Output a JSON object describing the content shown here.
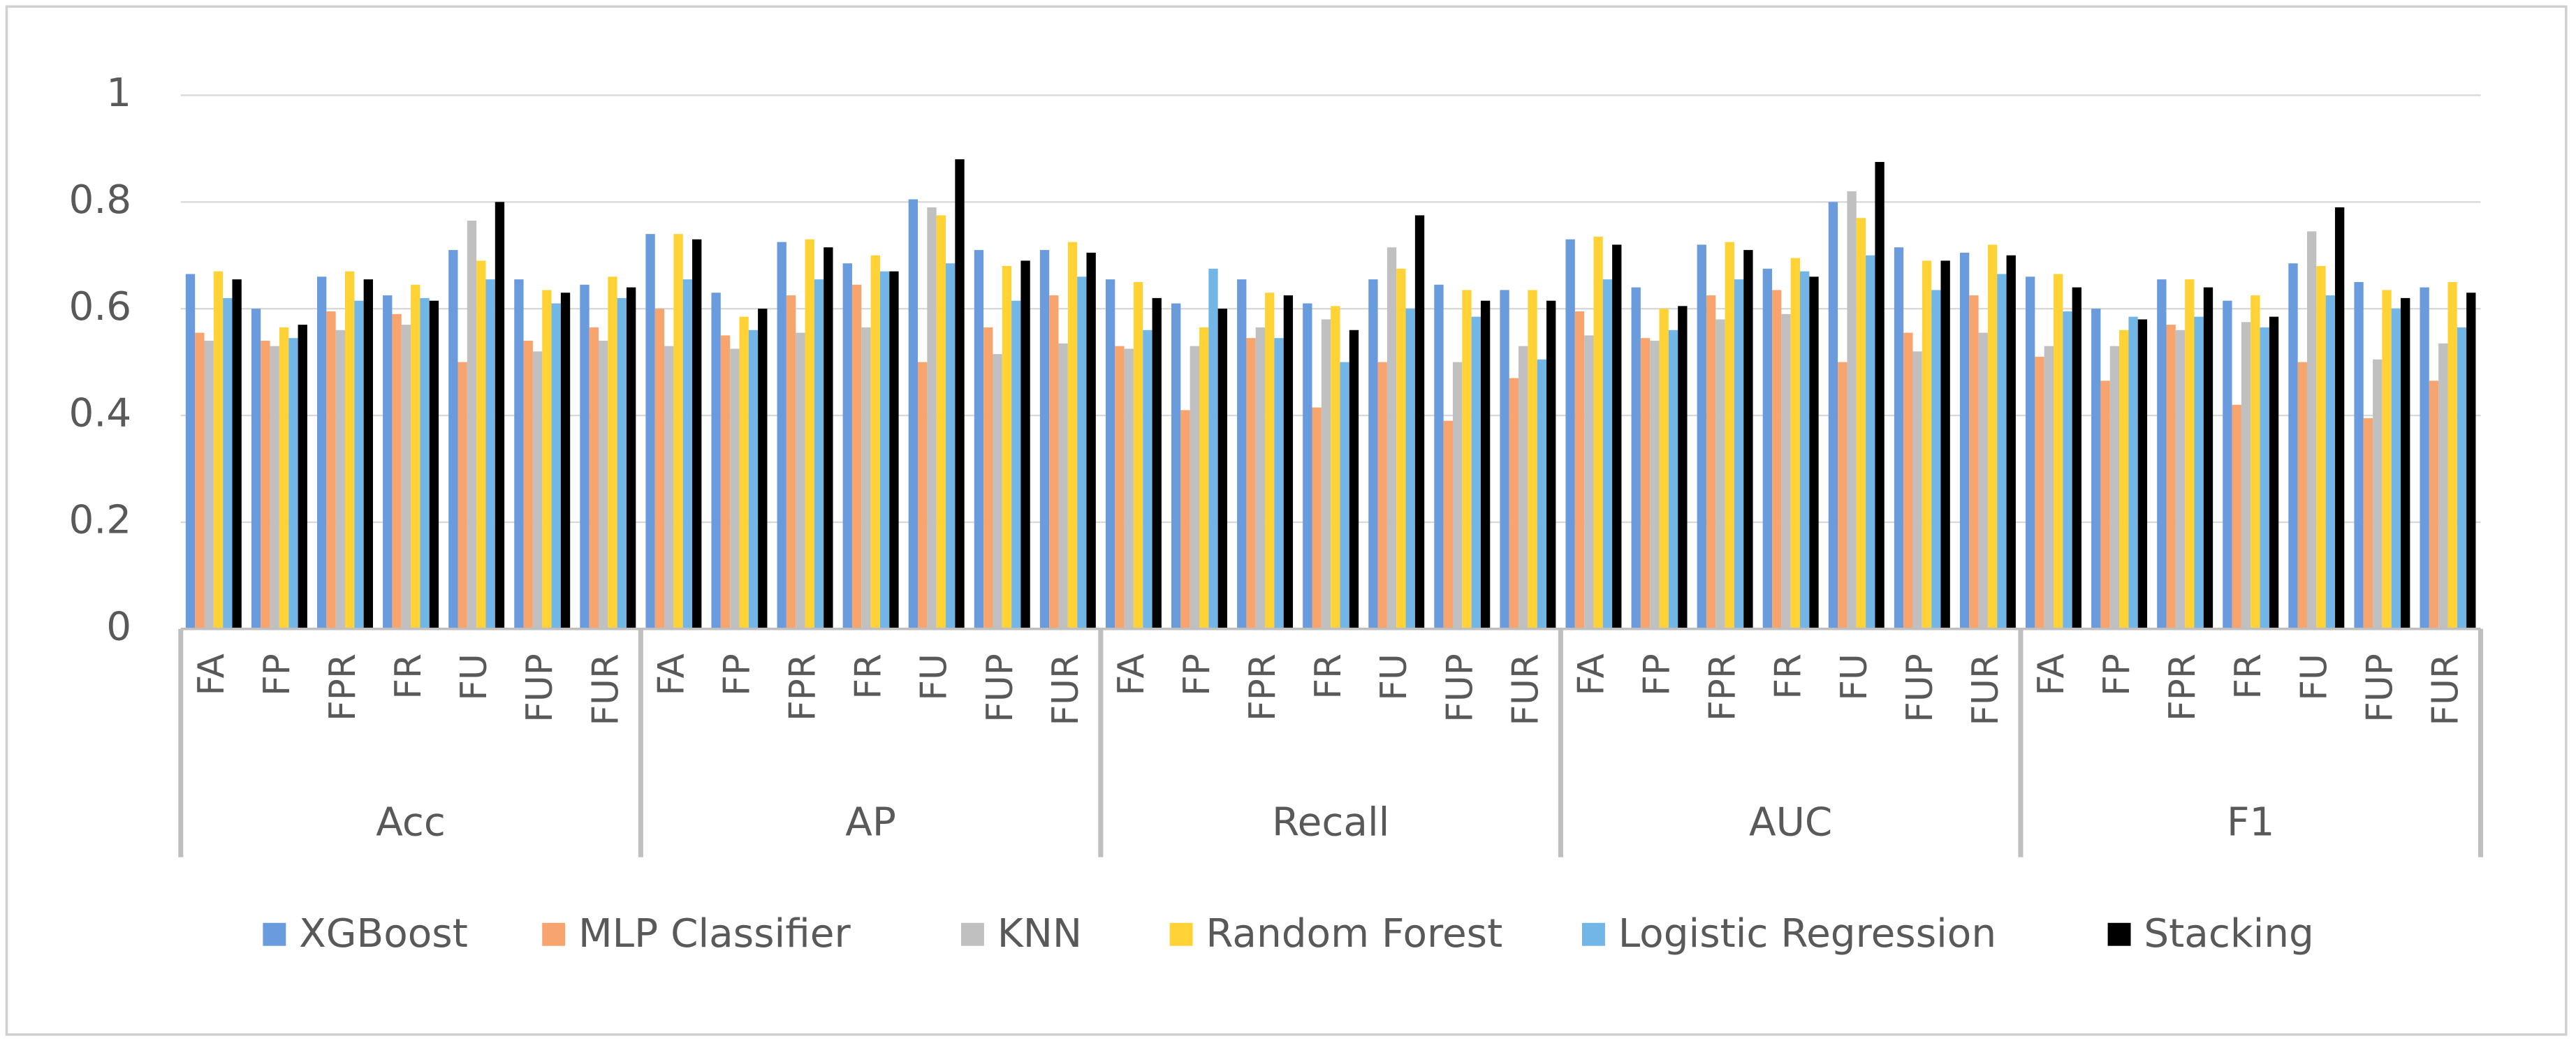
{
  "chart_data": {
    "type": "bar",
    "groups": [
      "Acc",
      "AP",
      "Recall",
      "AUC",
      "F1"
    ],
    "categories": [
      "FA",
      "FP",
      "FPR",
      "FR",
      "FU",
      "FUP",
      "FUR",
      "FA",
      "FP",
      "FPR",
      "FR",
      "FU",
      "FUP",
      "FUR",
      "FA",
      "FP",
      "FPR",
      "FR",
      "FU",
      "FUP",
      "FUR",
      "FA",
      "FP",
      "FPR",
      "FR",
      "FU",
      "FUP",
      "FUR",
      "FA",
      "FP",
      "FPR",
      "FR",
      "FU",
      "FUP",
      "FUR"
    ],
    "series": [
      {
        "name": "XGBoost",
        "color": "#6a9bdc",
        "values": [
          0.665,
          0.6,
          0.66,
          0.625,
          0.71,
          0.655,
          0.645,
          0.74,
          0.63,
          0.725,
          0.685,
          0.805,
          0.71,
          0.71,
          0.655,
          0.61,
          0.655,
          0.61,
          0.655,
          0.645,
          0.635,
          0.73,
          0.64,
          0.72,
          0.675,
          0.8,
          0.715,
          0.705,
          0.66,
          0.6,
          0.655,
          0.615,
          0.685,
          0.65,
          0.64
        ]
      },
      {
        "name": "MLP Classifier",
        "color": "#f7a46e",
        "values": [
          0.555,
          0.54,
          0.595,
          0.59,
          0.5,
          0.54,
          0.565,
          0.6,
          0.55,
          0.625,
          0.645,
          0.5,
          0.565,
          0.625,
          0.53,
          0.41,
          0.545,
          0.415,
          0.5,
          0.39,
          0.47,
          0.595,
          0.545,
          0.625,
          0.635,
          0.5,
          0.555,
          0.625,
          0.51,
          0.465,
          0.57,
          0.42,
          0.5,
          0.395,
          0.465
        ]
      },
      {
        "name": "KNN",
        "color": "#c0c0c0",
        "values": [
          0.54,
          0.53,
          0.56,
          0.57,
          0.765,
          0.52,
          0.54,
          0.53,
          0.525,
          0.555,
          0.565,
          0.79,
          0.515,
          0.535,
          0.525,
          0.53,
          0.565,
          0.58,
          0.715,
          0.5,
          0.53,
          0.55,
          0.54,
          0.58,
          0.59,
          0.82,
          0.52,
          0.555,
          0.53,
          0.53,
          0.56,
          0.575,
          0.745,
          0.505,
          0.535
        ]
      },
      {
        "name": "Random Forest",
        "color": "#ffd236",
        "values": [
          0.67,
          0.565,
          0.67,
          0.645,
          0.69,
          0.635,
          0.66,
          0.74,
          0.585,
          0.73,
          0.7,
          0.775,
          0.68,
          0.725,
          0.65,
          0.565,
          0.63,
          0.605,
          0.675,
          0.635,
          0.635,
          0.735,
          0.6,
          0.725,
          0.695,
          0.77,
          0.69,
          0.72,
          0.665,
          0.56,
          0.655,
          0.625,
          0.68,
          0.635,
          0.65
        ]
      },
      {
        "name": "Logistic Regression",
        "color": "#72b6e8",
        "values": [
          0.62,
          0.545,
          0.615,
          0.62,
          0.655,
          0.61,
          0.62,
          0.655,
          0.56,
          0.655,
          0.67,
          0.685,
          0.615,
          0.66,
          0.56,
          0.675,
          0.545,
          0.5,
          0.6,
          0.585,
          0.505,
          0.655,
          0.56,
          0.655,
          0.67,
          0.7,
          0.635,
          0.665,
          0.595,
          0.585,
          0.585,
          0.565,
          0.625,
          0.6,
          0.565
        ]
      },
      {
        "name": "Stacking",
        "color": "#000000",
        "values": [
          0.655,
          0.57,
          0.655,
          0.615,
          0.8,
          0.63,
          0.64,
          0.73,
          0.6,
          0.715,
          0.67,
          0.88,
          0.69,
          0.705,
          0.62,
          0.6,
          0.625,
          0.56,
          0.775,
          0.615,
          0.615,
          0.72,
          0.605,
          0.71,
          0.66,
          0.875,
          0.69,
          0.7,
          0.64,
          0.58,
          0.64,
          0.585,
          0.79,
          0.62,
          0.63
        ]
      }
    ],
    "ylim": [
      0,
      1
    ],
    "yticks": [
      0,
      0.2,
      0.4,
      0.6,
      0.8,
      1
    ],
    "grid": true,
    "legend": "bottom"
  }
}
